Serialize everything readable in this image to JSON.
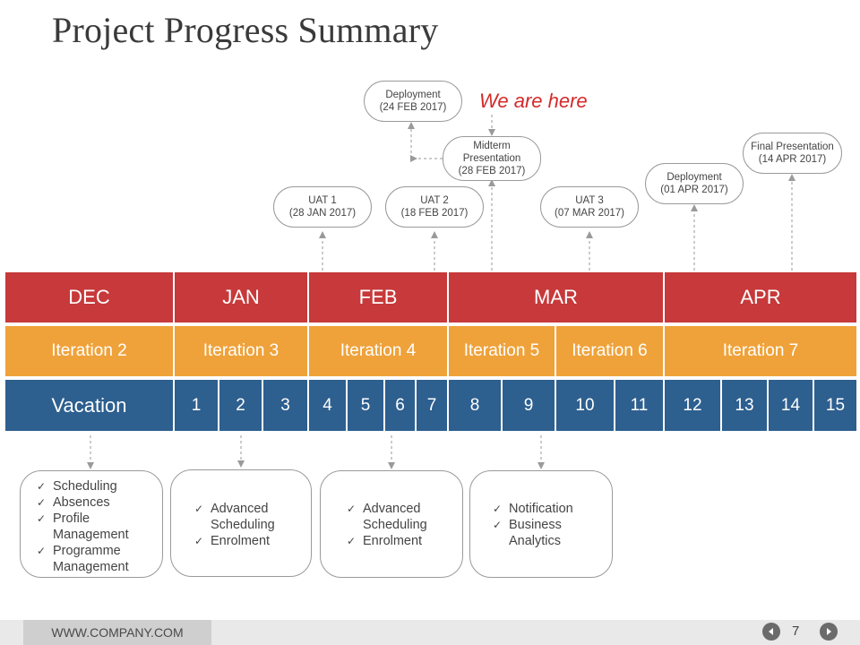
{
  "title": "Project Progress Summary",
  "annotation": "We are here",
  "milestones": [
    {
      "label": "Deployment",
      "date": "(24 FEB 2017)"
    },
    {
      "label": "Midterm Presentation",
      "date": "(28 FEB 2017)"
    },
    {
      "label": "UAT 1",
      "date": "(28 JAN 2017)"
    },
    {
      "label": "UAT 2",
      "date": "(18 FEB 2017)"
    },
    {
      "label": "UAT 3",
      "date": "(07 MAR 2017)"
    },
    {
      "label": "Deployment",
      "date": "(01 APR 2017)"
    },
    {
      "label": "Final Presentation",
      "date": "(14 APR 2017)"
    }
  ],
  "months": [
    "DEC",
    "JAN",
    "FEB",
    "MAR",
    "APR"
  ],
  "iterations": [
    "Iteration 2",
    "Iteration 3",
    "Iteration 4",
    "Iteration 5",
    "Iteration 6",
    "Iteration 7"
  ],
  "weeks": [
    "Vacation",
    "1",
    "2",
    "3",
    "4",
    "5",
    "6",
    "7",
    "8",
    "9",
    "10",
    "11",
    "12",
    "13",
    "14",
    "15"
  ],
  "task_boxes": [
    [
      "Scheduling",
      "Absences",
      "Profile Management",
      "Programme Management"
    ],
    [
      "Advanced Scheduling",
      "Enrolment"
    ],
    [
      "Advanced Scheduling",
      "Enrolment"
    ],
    [
      "Notification",
      "Business Analytics"
    ]
  ],
  "check_glyph": "✓",
  "footer": {
    "url": "WWW.COMPANY.COM",
    "page": "7"
  },
  "colors": {
    "month_row": "#c7393a",
    "iteration_row": "#efa23a",
    "week_row": "#2d5f8f",
    "annotation": "#d42a2a"
  }
}
